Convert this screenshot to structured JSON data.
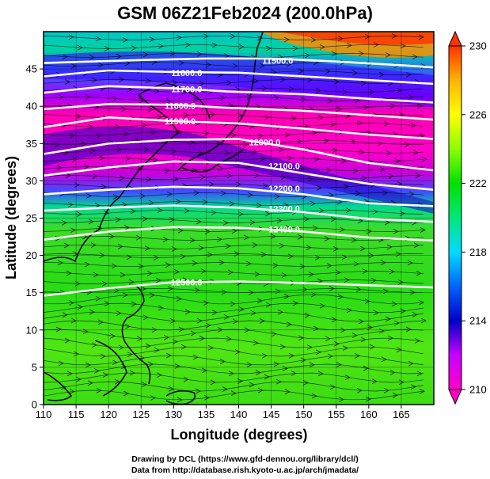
{
  "title": "GSM 06Z21Feb2024 (200.0hPa)",
  "credits": {
    "line1": "Drawing by DCL (https://www.gfd-dennou.org/library/dcl/)",
    "line2": "Data from http://database.rish.kyoto-u.ac.jp/arch/jmadata/"
  },
  "chart_data": {
    "type": "heatmap",
    "xlabel": "Longitude (degrees)",
    "ylabel": "Latitude  (degrees)",
    "xlim": [
      110,
      170
    ],
    "ylim": [
      0,
      50
    ],
    "x_ticks": [
      "110",
      "115",
      "120",
      "125",
      "130",
      "135",
      "140",
      "145",
      "150",
      "155",
      "160",
      "165"
    ],
    "y_ticks": [
      "0",
      "5",
      "10",
      "15",
      "20",
      "25",
      "30",
      "35",
      "40",
      "45"
    ],
    "colorbar": {
      "range": [
        210,
        230
      ],
      "ticks": [
        "210",
        "214",
        "218",
        "222",
        "226",
        "230"
      ],
      "colors": [
        "#ff00c8",
        "#c800ff",
        "#0000c8",
        "#0064ff",
        "#00dcff",
        "#00e87a",
        "#00e100",
        "#8cff00",
        "#ffff00",
        "#ffb400",
        "#ff3200"
      ]
    },
    "contours": [
      {
        "label": "11500.0",
        "lon": [
          110,
          125,
          135,
          145,
          155,
          165,
          170
        ],
        "lat": [
          45.8,
          46.2,
          46.4,
          46.4,
          46.0,
          45.5,
          45.2
        ],
        "lab_lon": 146,
        "lab_lat": 46.1
      },
      {
        "label": "11600.0",
        "lon": [
          110,
          120,
          130,
          140,
          150,
          160,
          170
        ],
        "lat": [
          44.0,
          44.8,
          44.6,
          44.5,
          44.0,
          43.5,
          43.0
        ],
        "lab_lon": 132,
        "lab_lat": 44.5
      },
      {
        "label": "11700.0",
        "lon": [
          110,
          120,
          130,
          138,
          150,
          160,
          170
        ],
        "lat": [
          41.8,
          42.7,
          42.4,
          42.0,
          41.6,
          41.0,
          40.5
        ],
        "lab_lon": 132,
        "lab_lat": 42.3
      },
      {
        "label": "11800.0",
        "lon": [
          110,
          120,
          130,
          138,
          150,
          160,
          170
        ],
        "lat": [
          39.6,
          40.3,
          40.2,
          39.8,
          39.4,
          38.8,
          38.2
        ],
        "lab_lon": 131,
        "lab_lat": 40.1
      },
      {
        "label": "11900.0",
        "lon": [
          110,
          120,
          130,
          140,
          150,
          160,
          170
        ],
        "lat": [
          37.2,
          38.5,
          38.0,
          37.7,
          37.0,
          36.2,
          35.6
        ],
        "lab_lon": 131,
        "lab_lat": 38.0
      },
      {
        "label": "12000.0",
        "lon": [
          110,
          120,
          130,
          140,
          150,
          160,
          170
        ],
        "lat": [
          33.6,
          35.0,
          35.5,
          35.6,
          34.2,
          32.4,
          31.4
        ],
        "lab_lon": 144,
        "lab_lat": 35.2
      },
      {
        "label": "12100.0",
        "lon": [
          110,
          120,
          130,
          140,
          150,
          160,
          170
        ],
        "lat": [
          30.7,
          31.8,
          32.6,
          32.4,
          31.0,
          29.6,
          28.8
        ],
        "lab_lon": 147,
        "lab_lat": 32.0
      },
      {
        "label": "12200.0",
        "lon": [
          110,
          120,
          130,
          140,
          150,
          160,
          170
        ],
        "lat": [
          28.2,
          28.8,
          29.2,
          29.0,
          28.2,
          27.0,
          26.6
        ],
        "lab_lon": 147,
        "lab_lat": 29.0
      },
      {
        "label": "12300.0",
        "lon": [
          110,
          120,
          130,
          140,
          150,
          160,
          170
        ],
        "lat": [
          26.0,
          26.4,
          26.7,
          26.4,
          25.8,
          24.9,
          24.5
        ],
        "lab_lon": 147,
        "lab_lat": 26.3
      },
      {
        "label": "12400.0",
        "lon": [
          110,
          120,
          130,
          140,
          150,
          160,
          170
        ],
        "lat": [
          22.1,
          23.2,
          23.8,
          23.7,
          23.2,
          22.4,
          22.0
        ],
        "lab_lon": 147,
        "lab_lat": 23.5
      },
      {
        "label": "12500.0",
        "lon": [
          110,
          120,
          130,
          140,
          150,
          160,
          170
        ],
        "lat": [
          14.6,
          15.6,
          16.4,
          16.5,
          16.3,
          16.0,
          15.7
        ],
        "lab_lon": 132,
        "lab_lat": 16.4
      }
    ]
  }
}
